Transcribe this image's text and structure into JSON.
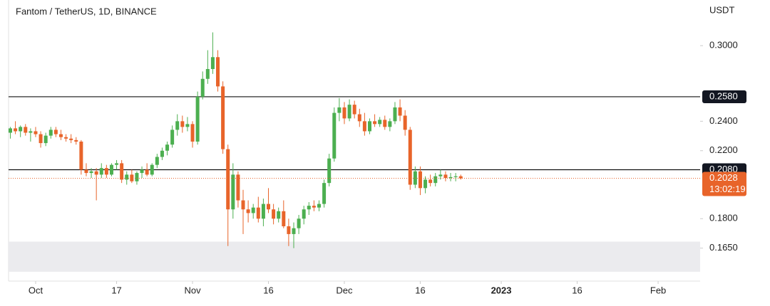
{
  "chart_data": {
    "type": "candlestick",
    "title": "Fantom / TetherUS, 1D, BINANCE",
    "y_axis_label": "USDT",
    "log_scale": true,
    "up_color": "#4caf50",
    "down_color": "#e8642a",
    "x": [
      -5,
      -4,
      -3,
      -2,
      -1,
      0,
      1,
      2,
      3,
      4,
      5,
      6,
      7,
      8,
      9,
      10,
      11,
      12,
      13,
      14,
      15,
      16,
      17,
      18,
      19,
      20,
      21,
      22,
      23,
      24,
      25,
      26,
      27,
      28,
      29,
      30,
      31,
      32,
      33,
      34,
      35,
      36,
      37,
      38,
      39,
      40,
      41,
      42,
      43,
      44,
      45,
      46,
      47,
      48,
      49,
      50,
      51,
      52,
      53,
      54,
      55,
      56,
      57,
      58,
      59,
      60,
      61,
      62,
      63,
      64,
      65,
      66,
      67,
      68,
      69,
      70,
      71,
      72,
      73,
      74,
      75,
      76,
      77,
      78,
      79,
      80,
      81,
      82,
      83,
      84
    ],
    "open": [
      0.232,
      0.235,
      0.233,
      0.236,
      0.232,
      0.233,
      0.231,
      0.225,
      0.23,
      0.234,
      0.231,
      0.229,
      0.228,
      0.227,
      0.226,
      0.208,
      0.206,
      0.207,
      0.205,
      0.209,
      0.205,
      0.211,
      0.212,
      0.202,
      0.205,
      0.201,
      0.206,
      0.208,
      0.205,
      0.211,
      0.216,
      0.22,
      0.224,
      0.234,
      0.24,
      0.236,
      0.238,
      0.226,
      0.258,
      0.272,
      0.28,
      0.29,
      0.266,
      0.221,
      0.185,
      0.205,
      0.19,
      0.185,
      0.183,
      0.186,
      0.18,
      0.188,
      0.185,
      0.18,
      0.184,
      0.176,
      0.172,
      0.175,
      0.18,
      0.185,
      0.187,
      0.186,
      0.188,
      0.2,
      0.215,
      0.246,
      0.25,
      0.242,
      0.252,
      0.245,
      0.24,
      0.233,
      0.24,
      0.238,
      0.241,
      0.236,
      0.24,
      0.25,
      0.244,
      0.234,
      0.199,
      0.207,
      0.197,
      0.202,
      0.2,
      0.204,
      0.205,
      0.203,
      0.2035,
      0.204
    ],
    "high": [
      0.236,
      0.24,
      0.237,
      0.238,
      0.235,
      0.236,
      0.233,
      0.232,
      0.236,
      0.236,
      0.234,
      0.231,
      0.231,
      0.229,
      0.227,
      0.212,
      0.209,
      0.209,
      0.212,
      0.211,
      0.212,
      0.214,
      0.214,
      0.207,
      0.208,
      0.207,
      0.21,
      0.212,
      0.212,
      0.218,
      0.222,
      0.226,
      0.237,
      0.245,
      0.244,
      0.243,
      0.24,
      0.262,
      0.278,
      0.296,
      0.312,
      0.296,
      0.27,
      0.224,
      0.212,
      0.207,
      0.196,
      0.19,
      0.188,
      0.192,
      0.191,
      0.197,
      0.188,
      0.186,
      0.19,
      0.18,
      0.178,
      0.182,
      0.187,
      0.189,
      0.19,
      0.19,
      0.202,
      0.218,
      0.25,
      0.257,
      0.254,
      0.256,
      0.255,
      0.249,
      0.246,
      0.242,
      0.245,
      0.243,
      0.244,
      0.242,
      0.254,
      0.256,
      0.248,
      0.236,
      0.21,
      0.21,
      0.204,
      0.205,
      0.206,
      0.208,
      0.207,
      0.206,
      0.206,
      0.205
    ],
    "low": [
      0.228,
      0.231,
      0.229,
      0.23,
      0.226,
      0.229,
      0.222,
      0.223,
      0.228,
      0.229,
      0.227,
      0.226,
      0.225,
      0.224,
      0.205,
      0.204,
      0.203,
      0.19,
      0.203,
      0.203,
      0.204,
      0.208,
      0.2,
      0.199,
      0.2,
      0.199,
      0.203,
      0.204,
      0.204,
      0.209,
      0.214,
      0.217,
      0.222,
      0.23,
      0.232,
      0.233,
      0.222,
      0.224,
      0.256,
      0.268,
      0.276,
      0.262,
      0.218,
      0.166,
      0.18,
      0.186,
      0.172,
      0.178,
      0.18,
      0.178,
      0.176,
      0.183,
      0.177,
      0.178,
      0.175,
      0.166,
      0.165,
      0.172,
      0.177,
      0.182,
      0.184,
      0.184,
      0.186,
      0.198,
      0.213,
      0.24,
      0.238,
      0.24,
      0.242,
      0.236,
      0.23,
      0.231,
      0.236,
      0.236,
      0.234,
      0.233,
      0.238,
      0.24,
      0.23,
      0.196,
      0.197,
      0.193,
      0.194,
      0.198,
      0.198,
      0.202,
      0.201,
      0.201,
      0.201,
      0.202
    ],
    "close": [
      0.235,
      0.233,
      0.236,
      0.232,
      0.233,
      0.231,
      0.225,
      0.23,
      0.234,
      0.231,
      0.229,
      0.228,
      0.227,
      0.226,
      0.208,
      0.206,
      0.207,
      0.205,
      0.209,
      0.205,
      0.211,
      0.212,
      0.202,
      0.205,
      0.201,
      0.206,
      0.208,
      0.205,
      0.211,
      0.216,
      0.22,
      0.224,
      0.234,
      0.24,
      0.236,
      0.238,
      0.226,
      0.258,
      0.272,
      0.28,
      0.29,
      0.266,
      0.221,
      0.185,
      0.205,
      0.19,
      0.185,
      0.183,
      0.186,
      0.18,
      0.188,
      0.185,
      0.18,
      0.184,
      0.176,
      0.172,
      0.175,
      0.18,
      0.185,
      0.187,
      0.186,
      0.188,
      0.2,
      0.215,
      0.246,
      0.25,
      0.242,
      0.252,
      0.245,
      0.24,
      0.233,
      0.24,
      0.238,
      0.241,
      0.236,
      0.24,
      0.25,
      0.244,
      0.234,
      0.199,
      0.207,
      0.197,
      0.202,
      0.2,
      0.204,
      0.205,
      0.203,
      0.2035,
      0.204,
      0.2028
    ],
    "xlim": [
      -5.35,
      131.3
    ],
    "xticks": [
      {
        "value": 0,
        "label": "Oct"
      },
      {
        "value": 16,
        "label": "17"
      },
      {
        "value": 31,
        "label": "Nov"
      },
      {
        "value": 46,
        "label": "16"
      },
      {
        "value": 61,
        "label": "Dec"
      },
      {
        "value": 76,
        "label": "16"
      },
      {
        "value": 92,
        "label": "2023"
      },
      {
        "value": 107,
        "label": "16"
      },
      {
        "value": 123,
        "label": "Feb"
      }
    ],
    "ylim": [
      0.1497,
      0.3433
    ],
    "yticks": [
      {
        "value": 0.3,
        "label": "0.3000"
      },
      {
        "value": 0.24,
        "label": "0.2400"
      },
      {
        "value": 0.22,
        "label": "0.2200"
      },
      {
        "value": 0.18,
        "label": "0.1800"
      },
      {
        "value": 0.165,
        "label": "0.1650"
      }
    ],
    "levels": [
      {
        "value": 0.258,
        "label": "0.2580"
      },
      {
        "value": 0.208,
        "label": "0.2080"
      }
    ],
    "last_price": {
      "value": 0.2028,
      "label": "0.2028",
      "countdown": "13:02:19"
    },
    "zone": [
      0.1539,
      0.1682
    ]
  }
}
